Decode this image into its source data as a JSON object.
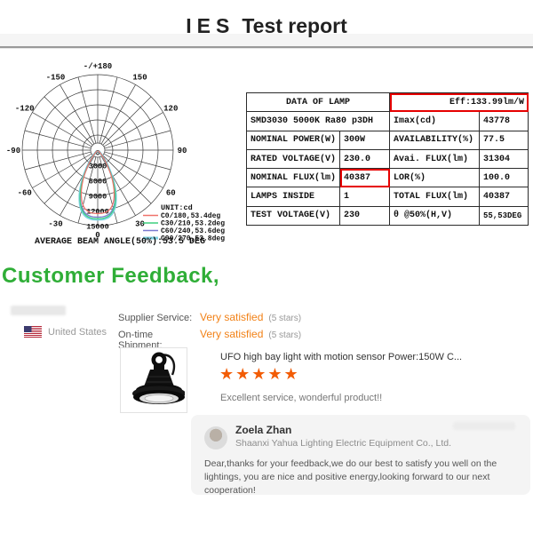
{
  "title": {
    "prefix": "IES",
    "rest": "Test report"
  },
  "colors": {
    "heading_green": "#2fae37",
    "accent_orange": "#f28116",
    "star_orange": "#f25c05",
    "highlight_red": "#e60000"
  },
  "chart_data": {
    "type": "line",
    "subtype": "polar-intensity-distribution",
    "unit_label": "UNIT:cd",
    "radial_ticks": [
      0,
      3000,
      6000,
      9000,
      12000,
      15000
    ],
    "radial_max": 15000,
    "angle_step_deg": 15,
    "angle_labels": [
      "-/+180",
      "-150",
      "-120",
      "-90",
      "-60",
      "-30",
      "0",
      "30",
      "60",
      "90",
      "120",
      "150"
    ],
    "average_beam_label": "AVERAGE BEAM ANGLE(50%):53.5 DEG",
    "average_beam_angle_deg": 53.5,
    "legend_position": "bottom-right",
    "series": [
      {
        "name": "C0/180,53.4deg",
        "color": "#f0736b",
        "imax_cd": 12600,
        "beam_deg": 53.4
      },
      {
        "name": "C30/210,53.2deg",
        "color": "#3ecf7e",
        "imax_cd": 13600,
        "beam_deg": 53.2
      },
      {
        "name": "C60/240,53.6deg",
        "color": "#7b7bd1",
        "imax_cd": 13300,
        "beam_deg": 53.6
      },
      {
        "name": "C90/270,53.8deg",
        "color": "#7fd2e2",
        "imax_cd": 13800,
        "beam_deg": 53.8
      }
    ]
  },
  "table": {
    "header_left": "DATA OF LAMP",
    "header_right": "Eff:133.99lm/W",
    "lamp_model": "SMD3030 5000K Ra80 p3DH",
    "rows": [
      {
        "r_label": "Imax(cd)",
        "r_value": "43778"
      },
      {
        "l_label": "NOMINAL POWER(W)",
        "l_value": "300W",
        "r_label": "AVAILABILITY(%)",
        "r_value": "77.5"
      },
      {
        "l_label": "RATED VOLTAGE(V)",
        "l_value": "230.0",
        "r_label": "Avai. FLUX(lm)",
        "r_value": "31304"
      },
      {
        "l_label": "NOMINAL FLUX(lm)",
        "l_value": "40387",
        "r_label": "LOR(%)",
        "r_value": "100.0"
      },
      {
        "l_label": "LAMPS INSIDE",
        "l_value": "1",
        "r_label": "TOTAL FLUX(lm)",
        "r_value": "40387"
      },
      {
        "l_label": "TEST VOLTAGE(V)",
        "l_value": "230",
        "r_label": "θ @50%(H,V)",
        "r_value": "55,53DEG"
      }
    ]
  },
  "feedback": {
    "heading": "Customer Feedback,",
    "buyer_country": "United States",
    "ratings": [
      {
        "label": "Supplier Service:",
        "value": "Very satisfied",
        "suffix": "(5 stars)"
      },
      {
        "label": "On-time Shipment:",
        "value": "Very satisfied",
        "suffix": "(5 stars)"
      }
    ],
    "product_title": "UFO high bay light with motion sensor Power:150W C...",
    "stars": "★★★★★",
    "review": "Excellent service, wonderful product!!",
    "reply": {
      "name": "Zoela Zhan",
      "company": "Shaanxi Yahua Lighting Electric Equipment Co., Ltd.",
      "message": "Dear,thanks for your feedback,we do our best to satisfy you well on the lightings, you are nice and positive energy,looking forward to our next cooperation!"
    }
  }
}
